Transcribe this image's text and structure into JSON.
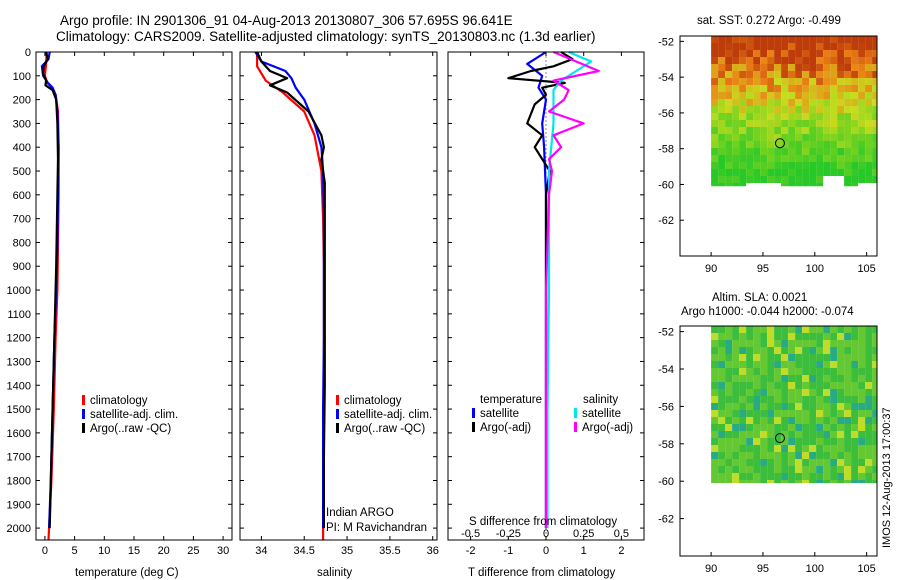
{
  "title": {
    "line1": "Argo profile: IN 2901306_91 04-Aug-2013 20130807_306 57.695S 96.641E",
    "line2": "Climatology: CARS2009. Satellite-adjusted climatology: synTS_20130803.nc (1.3d earlier)"
  },
  "colors": {
    "climatology": "#ff0000",
    "satellite": "#0000ff",
    "argo": "#000000",
    "sal_satellite": "#00e5ee",
    "sal_argo": "#ff00ff"
  },
  "chart_data": [
    {
      "type": "line",
      "panel": "temperature",
      "xlabel": "temperature (deg C)",
      "ylim": [
        2050,
        0
      ],
      "xlim": [
        -1.5,
        31.5
      ],
      "xticks": [
        "0",
        "5",
        "10",
        "15",
        "20",
        "25",
        "30"
      ],
      "yticks": [
        "0",
        "100",
        "200",
        "300",
        "400",
        "500",
        "600",
        "700",
        "800",
        "900",
        "1000",
        "1100",
        "1200",
        "1300",
        "1400",
        "1500",
        "1600",
        "1700",
        "1800",
        "1900",
        "2000"
      ],
      "legend": [
        "climatology",
        "satellite-adj. clim.",
        "Argo(..raw -QC)"
      ],
      "series": [
        {
          "name": "climatology",
          "depth": [
            0,
            50,
            100,
            130,
            150,
            180,
            250,
            400,
            600,
            800,
            1000,
            1200,
            1500,
            1800,
            2050
          ],
          "values": [
            0.3,
            0.2,
            0.0,
            0.4,
            1.2,
            1.8,
            2.2,
            2.3,
            2.3,
            2.2,
            2.1,
            1.8,
            1.5,
            1.1,
            0.6
          ]
        },
        {
          "name": "satellite-adj. clim.",
          "depth": [
            0,
            30,
            60,
            100,
            130,
            150,
            180,
            250,
            400,
            600,
            800,
            1000,
            1200,
            1500,
            1800,
            2000
          ],
          "values": [
            0.8,
            0.6,
            -0.5,
            -0.3,
            0.5,
            1.3,
            1.8,
            2.1,
            2.3,
            2.2,
            2.1,
            1.9,
            1.6,
            1.3,
            1.0,
            0.7
          ]
        },
        {
          "name": "Argo(..raw -QC)",
          "depth": [
            0,
            30,
            60,
            90,
            120,
            140,
            160,
            200,
            300,
            450,
            600,
            750,
            900,
            1100,
            1300,
            1500,
            1700,
            1900,
            2000
          ],
          "values": [
            0.2,
            0.5,
            -0.2,
            -0.3,
            0.2,
            0.1,
            1.3,
            1.9,
            2.1,
            2.2,
            2.1,
            2.0,
            1.9,
            1.7,
            1.5,
            1.3,
            1.1,
            0.9,
            0.8
          ]
        }
      ]
    },
    {
      "type": "line",
      "panel": "salinity",
      "xlabel": "salinity",
      "ylim": [
        2050,
        0
      ],
      "xlim": [
        33.75,
        36.05
      ],
      "xticks": [
        "34",
        "34.5",
        "35",
        "35.5",
        "36"
      ],
      "legend": [
        "climatology",
        "satellite-adj. clim.",
        "Argo(..raw -QC)"
      ],
      "annotation": [
        "Indian ARGO",
        "PI: M Ravichandran"
      ],
      "series": [
        {
          "name": "climatology",
          "depth": [
            0,
            60,
            120,
            170,
            250,
            350,
            500,
            700,
            900,
            1200,
            1500,
            1800,
            2050
          ],
          "values": [
            33.95,
            33.95,
            34.05,
            34.25,
            34.5,
            34.62,
            34.7,
            34.72,
            34.73,
            34.73,
            34.73,
            34.72,
            34.72
          ]
        },
        {
          "name": "satellite-adj. clim.",
          "depth": [
            0,
            40,
            80,
            110,
            150,
            200,
            300,
            400,
            500,
            700,
            900,
            1200,
            1500,
            1800,
            2000
          ],
          "values": [
            33.93,
            34.0,
            34.28,
            34.35,
            34.4,
            34.5,
            34.62,
            34.7,
            34.72,
            34.73,
            34.73,
            34.73,
            34.72,
            34.72,
            34.72
          ]
        },
        {
          "name": "Argo(..raw -QC)",
          "depth": [
            0,
            40,
            80,
            110,
            140,
            170,
            250,
            350,
            400,
            450,
            550,
            700,
            900,
            1100,
            1400,
            1700,
            2000
          ],
          "values": [
            33.95,
            34.0,
            34.1,
            34.3,
            34.1,
            34.3,
            34.55,
            34.7,
            34.73,
            34.7,
            34.74,
            34.74,
            34.74,
            34.74,
            34.74,
            34.73,
            34.73
          ]
        }
      ]
    },
    {
      "type": "line",
      "panel": "difference",
      "xlabel": "T difference from climatology",
      "xlabel_top": "S difference from climatology",
      "ylim": [
        2050,
        0
      ],
      "xlim": [
        -2.6,
        2.6
      ],
      "xticks": [
        "-2",
        "-1",
        "0",
        "1",
        "2"
      ],
      "xticks_top": [
        "-0.5",
        "-0.25",
        "0",
        "0.25",
        "0.5"
      ],
      "legend_titles": [
        "temperature",
        "salinity"
      ],
      "legend": [
        "satellite",
        "Argo(-adj)",
        "satellite",
        "Argo(-adj)"
      ],
      "series": [
        {
          "name": "satellite",
          "group": "temperature",
          "depth": [
            0,
            50,
            100,
            150,
            200,
            300,
            400,
            600,
            800,
            1000,
            1300,
            1600,
            2000
          ],
          "values": [
            0.0,
            -0.5,
            -0.1,
            -0.2,
            0.0,
            -0.1,
            -0.05,
            0.0,
            0.0,
            0.0,
            0.0,
            0.0,
            0.0
          ]
        },
        {
          "name": "Argo(-adj)",
          "group": "temperature",
          "depth": [
            0,
            30,
            60,
            80,
            110,
            130,
            150,
            180,
            220,
            300,
            350,
            400,
            450,
            500,
            600,
            700,
            1000,
            1500,
            2000
          ],
          "values": [
            0.4,
            0.7,
            0.2,
            -0.4,
            -1.0,
            0.5,
            -0.1,
            0.0,
            -0.3,
            -0.5,
            -0.1,
            -0.3,
            -0.1,
            0.1,
            0.0,
            0.0,
            0.0,
            0.0,
            0.0
          ]
        },
        {
          "name": "satellite",
          "group": "salinity",
          "depth": [
            0,
            40,
            80,
            120,
            160,
            200,
            300,
            500,
            700,
            1000,
            1500,
            2000
          ],
          "values": [
            0.15,
            0.3,
            0.2,
            0.1,
            0.05,
            0.05,
            0.05,
            0.02,
            0.02,
            0.02,
            0.01,
            0.01
          ]
        },
        {
          "name": "Argo(-adj)",
          "group": "salinity",
          "depth": [
            0,
            40,
            80,
            120,
            160,
            200,
            250,
            300,
            350,
            400,
            450,
            500,
            600,
            800,
            1000,
            1500,
            2000
          ],
          "values": [
            0.05,
            0.2,
            0.35,
            0.05,
            0.15,
            0.12,
            0.02,
            0.25,
            0.05,
            0.1,
            0.02,
            0.04,
            0.02,
            0.01,
            0.0,
            0.0,
            0.0
          ]
        }
      ]
    },
    {
      "type": "heatmap",
      "panel": "sst_map",
      "title": "sat. SST: 0.272 Argo: -0.499",
      "xlim": [
        87,
        106
      ],
      "ylim": [
        -64,
        -51.7
      ],
      "xticks": [
        "90",
        "95",
        "100",
        "105"
      ],
      "yticks": [
        "-52",
        "-54",
        "-56",
        "-58",
        "-60",
        "-62"
      ],
      "marker": {
        "lon": 96.641,
        "lat": -57.695
      }
    },
    {
      "type": "heatmap",
      "panel": "sla_map",
      "title_line1": "Altim. SLA: 0.0021",
      "title_line2": "Argo h1000: -0.044 h2000: -0.074",
      "xlim": [
        87,
        106
      ],
      "ylim": [
        -64,
        -51.7
      ],
      "xticks": [
        "90",
        "95",
        "100",
        "105"
      ],
      "yticks": [
        "-52",
        "-54",
        "-56",
        "-58",
        "-60",
        "-62"
      ],
      "marker": {
        "lon": 96.641,
        "lat": -57.695
      }
    }
  ],
  "stamp": "IMOS 12-Aug-2013 17:00:37"
}
